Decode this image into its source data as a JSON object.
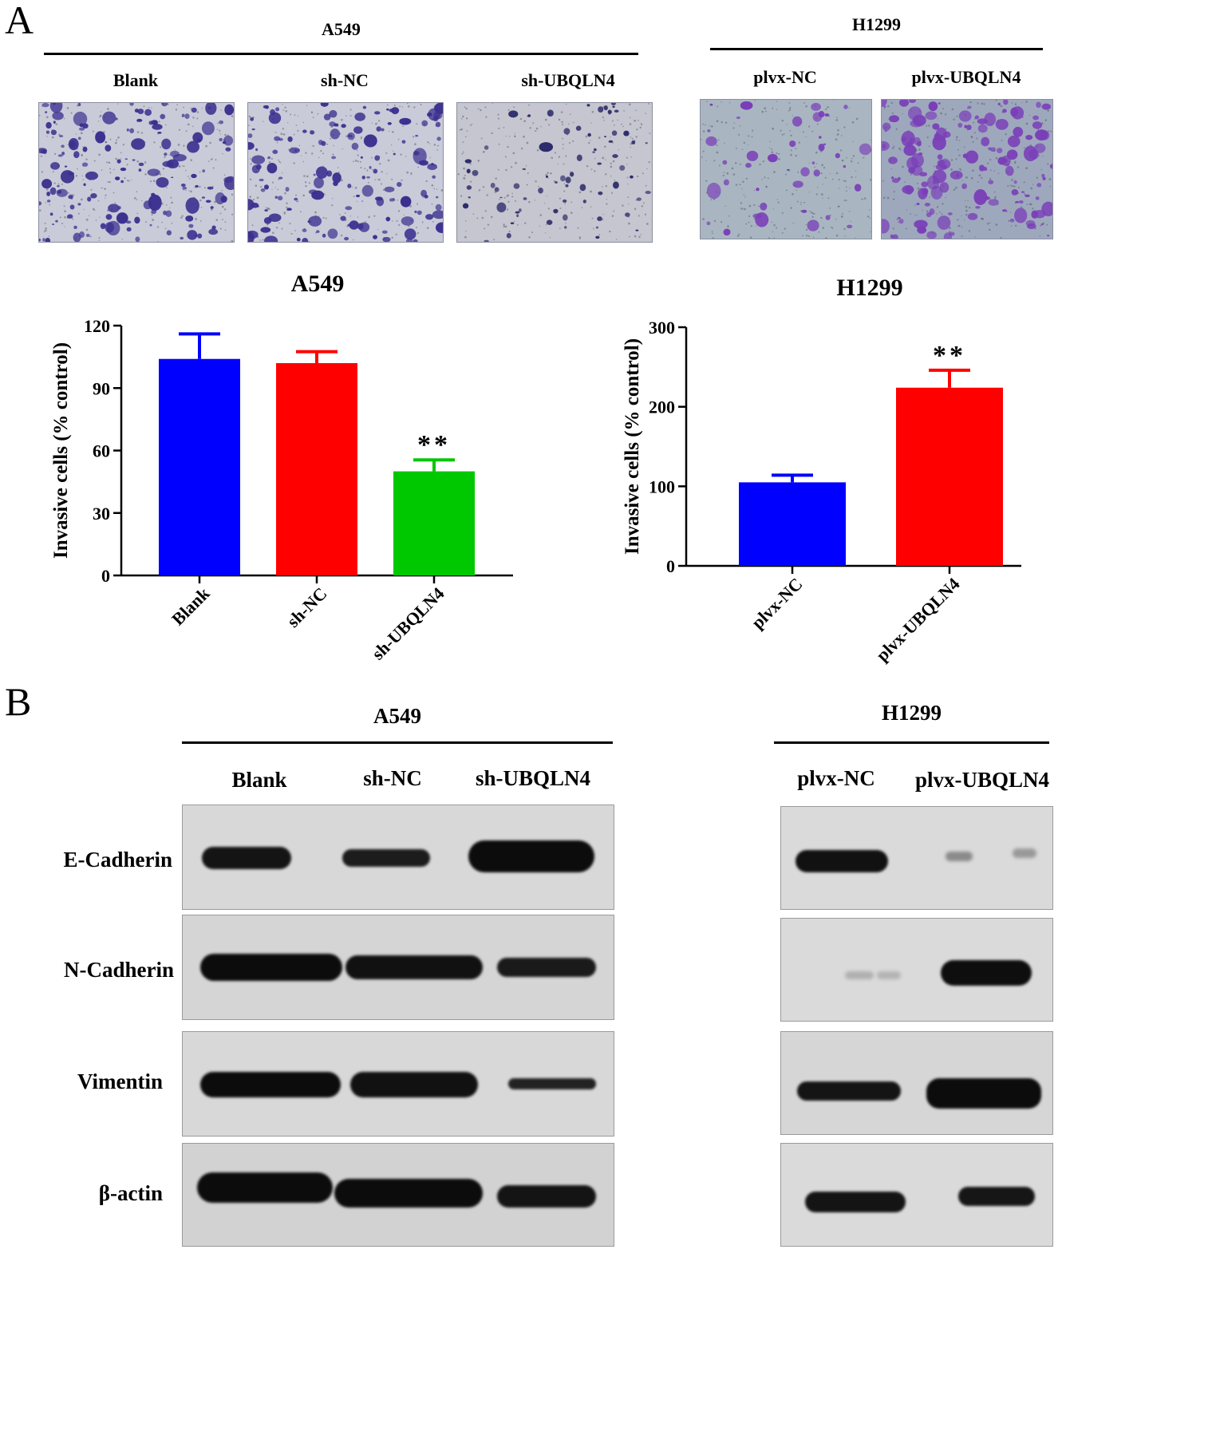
{
  "panel_a": {
    "letter": "A",
    "a549": {
      "title": "A549",
      "lanes": [
        "Blank",
        "sh-NC",
        "sh-UBQLN4"
      ]
    },
    "h1299": {
      "title": "H1299",
      "lanes": [
        "plvx-NC",
        "plvx-UBQLN4"
      ]
    }
  },
  "panel_b": {
    "letter": "B",
    "a549": {
      "title": "A549",
      "lanes": [
        "Blank",
        "sh-NC",
        "sh-UBQLN4"
      ]
    },
    "h1299": {
      "title": "H1299",
      "lanes": [
        "plvx-NC",
        "plvx-UBQLN4"
      ]
    },
    "proteins": [
      "E-Cadherin",
      "N-Cadherin",
      "Vimentin",
      "β-actin"
    ]
  },
  "chart_data": [
    {
      "type": "bar",
      "title": "A549",
      "ylabel": "Invasive cells (% control)",
      "categories": [
        "Blank",
        "sh-NC",
        "sh-UBQLN4"
      ],
      "values": [
        104,
        102,
        50
      ],
      "errors": [
        12,
        5.5,
        5.5
      ],
      "colors": [
        "#0000ff",
        "#ff0000",
        "#00c800"
      ],
      "annotations": [
        "",
        "",
        "**"
      ],
      "ylim": [
        0,
        120
      ],
      "yticks": [
        0,
        30,
        60,
        90,
        120
      ]
    },
    {
      "type": "bar",
      "title": "H1299",
      "ylabel": "Invasive cells (% control)",
      "categories": [
        "plvx-NC",
        "plvx-UBQLN4"
      ],
      "values": [
        105,
        224
      ],
      "errors": [
        9,
        22
      ],
      "colors": [
        "#0000ff",
        "#ff0000"
      ],
      "annotations": [
        "",
        "**"
      ],
      "ylim": [
        0,
        300
      ],
      "yticks": [
        0,
        100,
        200,
        300
      ]
    }
  ]
}
